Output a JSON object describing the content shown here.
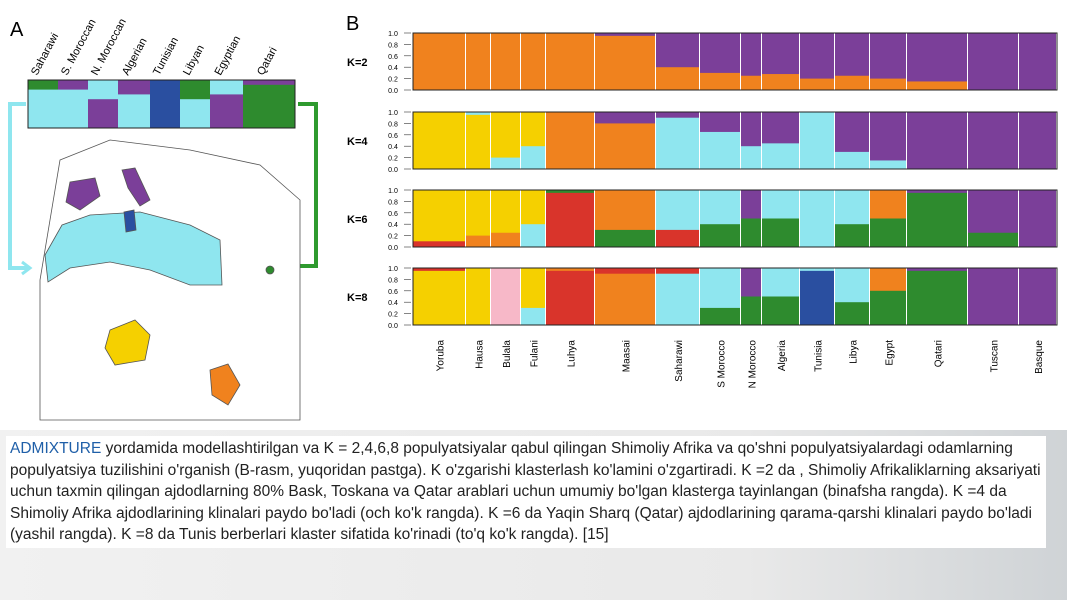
{
  "panel_a": {
    "label": "A",
    "populations": [
      "Saharawi",
      "S. Moroccan",
      "N. Moroccan",
      "Algerian",
      "Tunisian",
      "Libyan",
      "Egyptian",
      "Qatari"
    ]
  },
  "panel_b": {
    "label": "B",
    "k_labels": [
      "K=2",
      "K=4",
      "K=6",
      "K=8"
    ],
    "y_ticks": [
      "1.0",
      "0.8",
      "0.6",
      "0.4",
      "0.2",
      "0.0"
    ],
    "populations": [
      "Yoruba",
      "Hausa",
      "Bulala",
      "Fulani",
      "Luhya",
      "Maasai",
      "Saharawi",
      "S Morocco",
      "N Morocco",
      "Algeria",
      "Tunisia",
      "Libya",
      "Egypt",
      "Qatari",
      "Tuscan",
      "Basque"
    ]
  },
  "caption": {
    "highlight": "ADMIXTURE",
    "text": " yordamida modellashtirilgan va K = 2,4,6,8 populyatsiyalar qabul qilingan Shimoliy Afrika va qo'shni populyatsiyalardagi odamlarning populyatsiya tuzilishini o'rganish (B-rasm, yuqoridan pastga). K o'zgarishi klasterlash ko'lamini o'zgartiradi. K =2 da , Shimoliy Afrikaliklarning aksariyati uchun taxmin qilingan ajdodlarning 80% Bask, Toskana va Qatar arablari uchun umumiy bo'lgan klasterga tayinlangan (binafsha rangda). K =4 da Shimoliy Afrika ajdodlarining klinalari paydo bo'ladi (och ko'k rangda). K =6 da Yaqin Sharq (Qatar) ajdodlarining qarama-qarshi klinalari paydo bo'ladi (yashil rangda). K =8 da Tunis berberlari klaster sifatida ko'rinadi (to'q ko'k rangda). [15]"
  }
}
